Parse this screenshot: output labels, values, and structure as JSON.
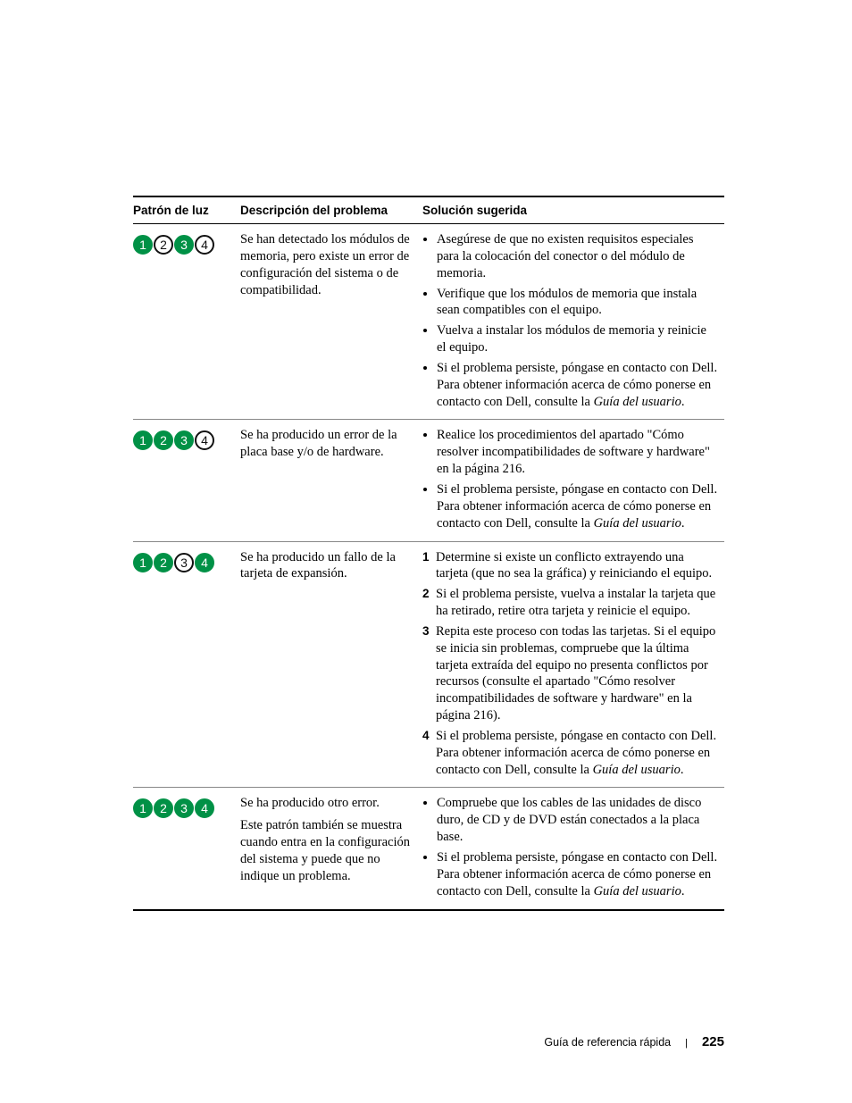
{
  "colors": {
    "on": "#009146",
    "off_border": "#111111",
    "off_text": "#111111"
  },
  "headers": {
    "pattern": "Patrón de luz",
    "description": "Descripción del problema",
    "solution": "Solución sugerida"
  },
  "rows": [
    {
      "lights": [
        true,
        false,
        true,
        false
      ],
      "description": [
        "Se han detectado los módulos de memoria, pero existe un error de configuración del sistema o de compatibilidad."
      ],
      "solution_type": "bullets",
      "solution": [
        "Asegúrese de que no existen requisitos especiales para la colocación del conector o del módulo de memoria.",
        "Verifique que los módulos de memoria que instala sean compatibles con el equipo.",
        "Vuelva a instalar los módulos de memoria y reinicie el equipo.",
        "Si el problema persiste, póngase en contacto con Dell. Para obtener información acerca de cómo ponerse en contacto con Dell, consulte la <i>Guía del usuario</i>."
      ]
    },
    {
      "lights": [
        true,
        true,
        true,
        false
      ],
      "description": [
        "Se ha producido un error de la placa base y/o de hardware."
      ],
      "solution_type": "bullets",
      "solution": [
        "Realice los procedimientos del apartado \"Cómo resolver incompatibilidades de software y hardware\" en la página 216.",
        "Si el problema persiste, póngase en contacto con Dell. Para obtener información acerca de cómo ponerse en contacto con Dell, consulte la <i>Guía del usuario</i>."
      ]
    },
    {
      "lights": [
        true,
        true,
        false,
        true
      ],
      "description": [
        "Se ha producido un fallo de la tarjeta de expansión."
      ],
      "solution_type": "numbers",
      "solution": [
        "Determine si existe un conflicto extrayendo una tarjeta (que no sea la gráfica) y reiniciando el equipo.",
        "Si el problema persiste, vuelva a instalar la tarjeta que ha retirado, retire otra tarjeta y reinicie el equipo.",
        "Repita este proceso con todas las tarjetas. Si el equipo se inicia sin problemas, compruebe que la última tarjeta extraída del equipo no presenta conflictos por recursos (consulte el apartado \"Cómo resolver incompatibilidades de software y hardware\" en la página 216).",
        "Si el problema persiste, póngase en contacto con Dell. Para obtener información acerca de cómo ponerse en contacto con Dell, consulte la <i>Guía del usuario</i>."
      ]
    },
    {
      "lights": [
        true,
        true,
        true,
        true
      ],
      "description": [
        "Se ha producido otro error.",
        "Este patrón también se muestra cuando entra en la configuración del sistema y puede que no indique un problema."
      ],
      "solution_type": "bullets",
      "solution": [
        "Compruebe que los cables de las unidades de disco duro, de CD y de DVD están conectados a la placa base.",
        "Si el problema persiste, póngase en contacto con Dell. Para obtener información acerca de cómo ponerse en contacto con Dell, consulte la <i>Guía del usuario</i>."
      ]
    }
  ],
  "footer": {
    "title": "Guía de referencia rápida",
    "page": "225"
  }
}
